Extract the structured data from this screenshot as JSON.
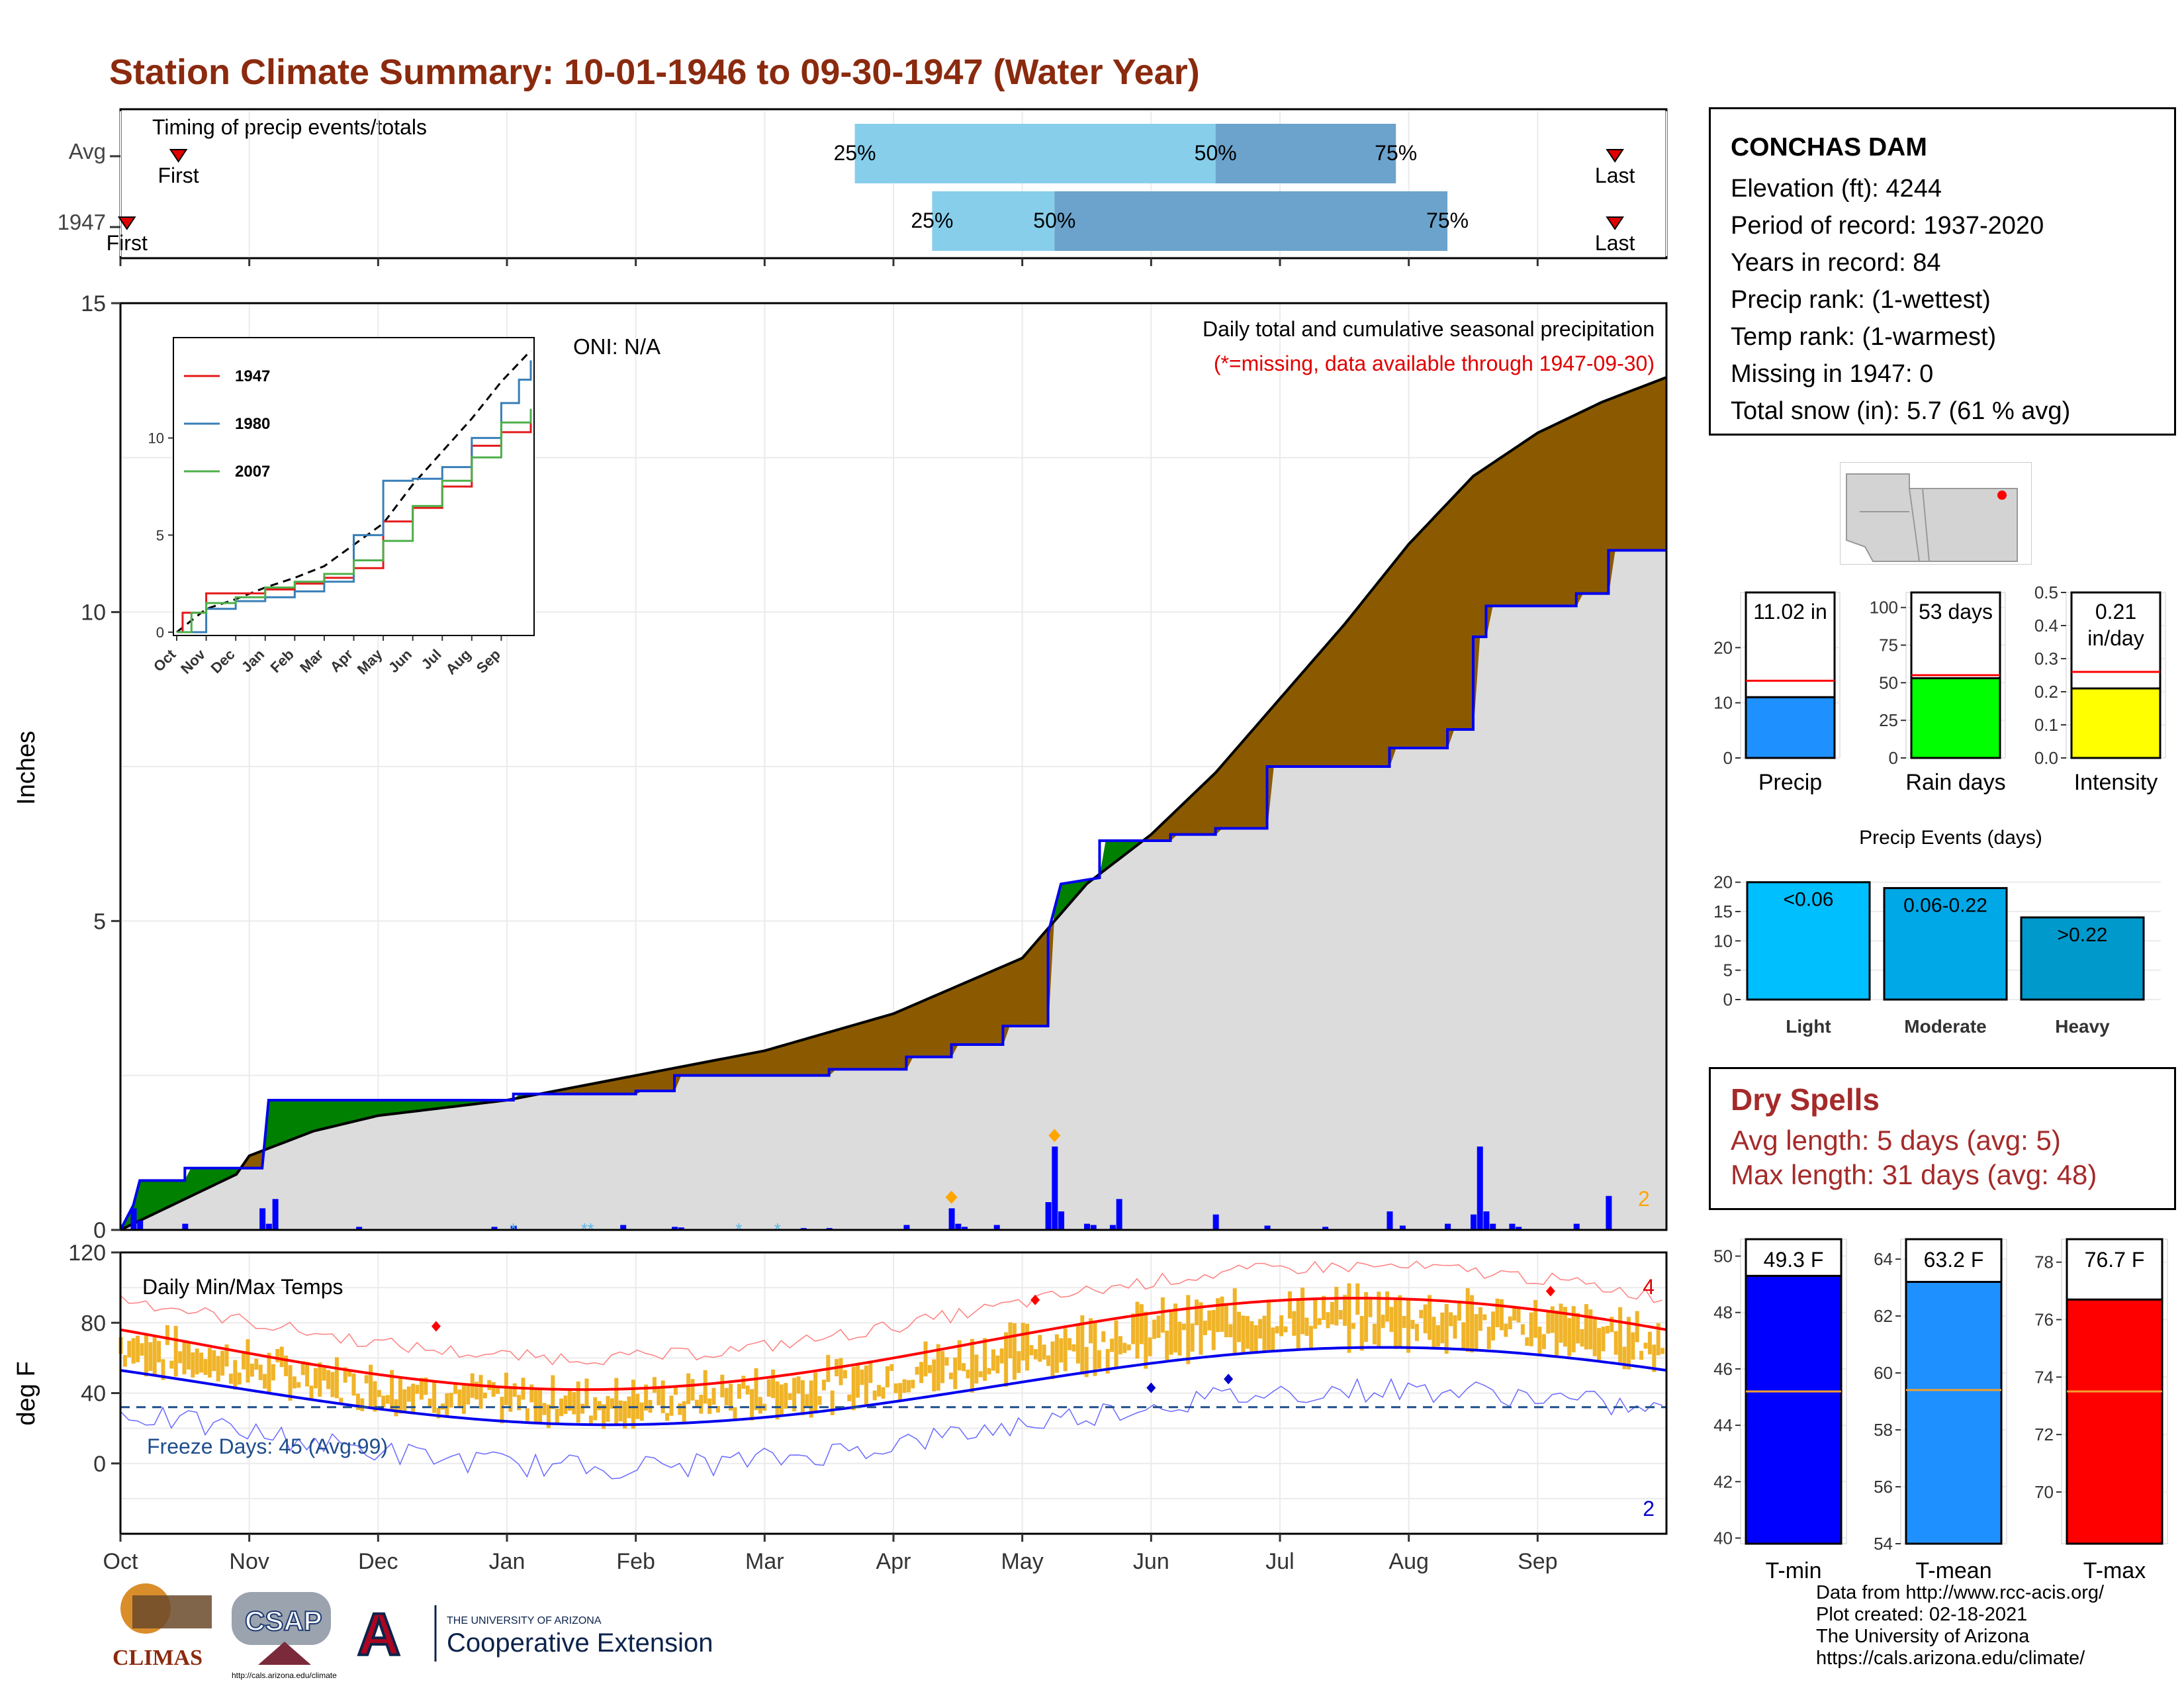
{
  "title": "Station Climate Summary: 10-01-1946 to 09-30-1947 (Water Year)",
  "timing": {
    "label": "Timing of precip events/totals",
    "rows": [
      {
        "name": "Avg",
        "first_label": "First",
        "last_label": "Last",
        "q25_label": "25%",
        "q50_label": "50%",
        "q75_label": "75%",
        "first_month": 0.45,
        "last_month": 11.6,
        "q25_month": 5.7,
        "q50_month": 8.5,
        "q75_month": 9.9
      },
      {
        "name": "1947",
        "first_label": "First",
        "last_label": "Last",
        "q25_label": "25%",
        "q50_label": "50%",
        "q75_label": "75%",
        "first_month": 0.05,
        "last_month": 11.6,
        "q25_month": 6.3,
        "q50_month": 7.25,
        "q75_month": 10.3
      }
    ]
  },
  "main_chart": {
    "ylabel": "Inches",
    "oni_label": "ONI: N/A",
    "legend_line1": "Daily total and cumulative seasonal precipitation",
    "legend_line2": "(*=missing, data available through 1947-09-30)",
    "yticks": [
      "0",
      "5",
      "10",
      "15"
    ],
    "count_label": "2",
    "colors": {
      "surplus": "#008000",
      "deficit": "#8B5A00",
      "avg_fill": "#DCDCDC",
      "obs": "#0000EE"
    }
  },
  "inset": {
    "series_names": [
      "1947",
      "1980",
      "2007"
    ],
    "series_colors": [
      "#E41A1C",
      "#377EB8",
      "#4DAF4A"
    ],
    "yticks": [
      "0",
      "5",
      "10"
    ],
    "months": [
      "Oct",
      "Nov",
      "Dec",
      "Jan",
      "Feb",
      "Mar",
      "Apr",
      "May",
      "Jun",
      "Jul",
      "Aug",
      "Sep"
    ]
  },
  "temp_chart": {
    "ylabel": "deg F",
    "label": "Daily Min/Max Temps",
    "freeze_label": "Freeze Days: 45 (Avg:99)",
    "yticks": [
      "0",
      "40",
      "80",
      "120"
    ],
    "count_high": "4",
    "count_low": "2"
  },
  "months": [
    "Oct",
    "Nov",
    "Dec",
    "Jan",
    "Feb",
    "Mar",
    "Apr",
    "May",
    "Jun",
    "Jul",
    "Aug",
    "Sep"
  ],
  "station": {
    "name": "CONCHAS DAM",
    "elevation": "Elevation (ft): 4244",
    "period": "Period of record: 1937-2020",
    "years": "Years in record: 84",
    "precip_rank": "Precip rank:  (1-wettest)",
    "temp_rank": "Temp rank:  (1-warmest)",
    "missing": "Missing in 1947: 0",
    "snow": "Total snow (in): 5.7 (61 % avg)"
  },
  "chart_data": [
    {
      "type": "bar",
      "title": "",
      "categories": [
        "Precip"
      ],
      "values": [
        11.02
      ],
      "average": 14,
      "value_label": "11.02 in",
      "yticks": [
        "0",
        "10",
        "20"
      ],
      "ylim": [
        0,
        30
      ],
      "color": "#1E90FF"
    },
    {
      "type": "bar",
      "categories": [
        "Rain days"
      ],
      "values": [
        53
      ],
      "average": 55,
      "value_label": "53 days",
      "yticks": [
        "0",
        "25",
        "50",
        "75",
        "100"
      ],
      "ylim": [
        0,
        110
      ],
      "color": "#00FF00"
    },
    {
      "type": "bar",
      "categories": [
        "Intensity"
      ],
      "values": [
        0.21
      ],
      "average": 0.26,
      "value_label_1": "0.21",
      "value_label_2": "in/day",
      "yticks": [
        "0.0",
        "0.1",
        "0.2",
        "0.3",
        "0.4",
        "0.5"
      ],
      "ylim": [
        0,
        0.5
      ],
      "color": "#FFFF00"
    },
    {
      "type": "bar",
      "title": "Precip Events (days)",
      "categories": [
        "Light",
        "Moderate",
        "Heavy"
      ],
      "bar_labels": [
        "<0.06",
        "0.06-0.22",
        ">0.22"
      ],
      "values": [
        20,
        19,
        14
      ],
      "yticks": [
        "0",
        "5",
        "10",
        "15",
        "20"
      ],
      "ylim": [
        0,
        22
      ],
      "colors": [
        "#00BFFF",
        "#00A8E8",
        "#0099CC"
      ]
    },
    {
      "type": "bar",
      "categories": [
        "T-min"
      ],
      "values": [
        49.3
      ],
      "average": 45.2,
      "value_label": "49.3 F",
      "yticks": [
        "40",
        "42",
        "44",
        "46",
        "48",
        "50"
      ],
      "ylim": [
        39.8,
        50.6
      ],
      "color": "#0000FF"
    },
    {
      "type": "bar",
      "categories": [
        "T-mean"
      ],
      "values": [
        63.2
      ],
      "average": 59.4,
      "value_label": "63.2 F",
      "yticks": [
        "54",
        "56",
        "58",
        "60",
        "62",
        "64"
      ],
      "ylim": [
        54,
        64.7
      ],
      "color": "#1E90FF"
    },
    {
      "type": "bar",
      "categories": [
        "T-max"
      ],
      "values": [
        76.7
      ],
      "average": 73.5,
      "value_label": "76.7 F",
      "yticks": [
        "70",
        "72",
        "74",
        "76",
        "78"
      ],
      "ylim": [
        68.2,
        78.8
      ],
      "color": "#FF0000"
    }
  ],
  "dry_spells": {
    "heading": "Dry Spells",
    "avg": "Avg length: 5 days (avg: 5)",
    "max": "Max length: 31 days (avg: 48)"
  },
  "credits": {
    "line1": "Data from http://www.rcc-acis.org/",
    "line2": "Plot created: 02-18-2021",
    "line3": "The University of Arizona",
    "line4": "https://cals.arizona.edu/climate/"
  },
  "logos": {
    "climas": "CLIMAS",
    "csap": "CSAP",
    "csap_url": "http://cals.arizona.edu/climate",
    "ua_small": "THE UNIVERSITY OF ARIZONA",
    "ua_big": "Cooperative Extension",
    "ua_letter": "A"
  }
}
